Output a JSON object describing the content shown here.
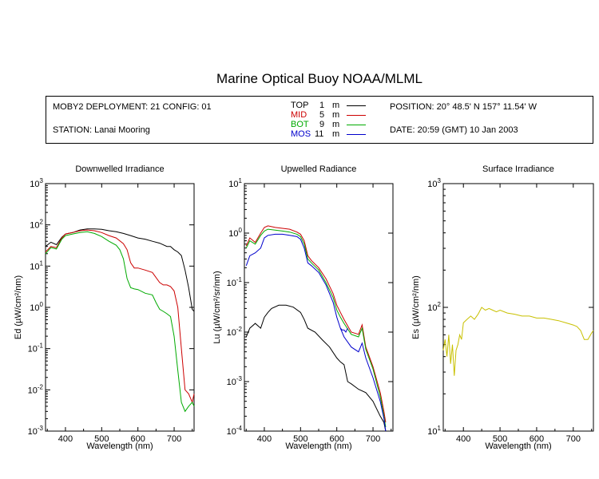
{
  "title": "Marine Optical Buoy NOAA/MLML",
  "info": {
    "deployment": "MOBY2 DEPLOYMENT: 21 CONFIG: 01",
    "station": "STATION: Lanai Mooring",
    "position": "POSITION: 20° 48.5' N   157° 11.54' W",
    "date": "DATE: 20:59 (GMT) 10 Jan 2003"
  },
  "legend": [
    {
      "name": "TOP",
      "depth": "1",
      "unit": "m",
      "color": "#000000"
    },
    {
      "name": "MID",
      "depth": "5",
      "unit": "m",
      "color": "#cc0000"
    },
    {
      "name": "BOT",
      "depth": "9",
      "unit": "m",
      "color": "#00aa00"
    },
    {
      "name": "MOS",
      "depth": "11",
      "unit": "m",
      "color": "#0000cc"
    }
  ],
  "chart_data": [
    {
      "type": "line",
      "title": "Downwelled Irradiance",
      "xlabel": "Wavelength (nm)",
      "ylabel": "Ed (µW/cm²/nm)",
      "xlim": [
        345,
        755
      ],
      "ylim": [
        0.001,
        1000
      ],
      "yscale": "log",
      "xticks": [
        400,
        500,
        600,
        700
      ],
      "yticks": [
        "10^3",
        "10^2",
        "10^1",
        "10^0",
        "10^-1",
        "10^-2",
        "10^-3"
      ],
      "series": [
        {
          "name": "TOP",
          "color": "#000000",
          "x": [
            345,
            360,
            375,
            390,
            400,
            420,
            440,
            460,
            480,
            500,
            520,
            540,
            560,
            580,
            600,
            620,
            640,
            660,
            680,
            690,
            700,
            710,
            720,
            730,
            740,
            750,
            755
          ],
          "y": [
            30,
            38,
            33,
            50,
            60,
            65,
            75,
            80,
            80,
            78,
            72,
            68,
            62,
            55,
            48,
            45,
            40,
            36,
            30,
            30,
            25,
            22,
            18,
            8,
            3,
            0.9,
            0.8
          ]
        },
        {
          "name": "MID",
          "color": "#cc0000",
          "x": [
            345,
            360,
            375,
            390,
            400,
            420,
            440,
            460,
            480,
            500,
            520,
            540,
            560,
            570,
            580,
            590,
            600,
            620,
            640,
            660,
            670,
            680,
            690,
            700,
            710,
            720,
            730,
            740,
            750,
            755
          ],
          "y": [
            22,
            30,
            28,
            48,
            60,
            65,
            72,
            75,
            72,
            65,
            55,
            48,
            35,
            25,
            12,
            9,
            9,
            8,
            7,
            4,
            3.5,
            3.5,
            3.2,
            2.5,
            1,
            0.1,
            0.01,
            0.008,
            0.005,
            0.008
          ]
        },
        {
          "name": "BOT",
          "color": "#00aa00",
          "x": [
            345,
            360,
            375,
            390,
            400,
            420,
            440,
            460,
            480,
            500,
            520,
            540,
            550,
            560,
            570,
            580,
            590,
            600,
            620,
            640,
            650,
            660,
            670,
            680,
            690,
            700,
            710,
            720,
            730,
            740,
            750,
            755
          ],
          "y": [
            20,
            28,
            26,
            45,
            55,
            60,
            65,
            68,
            62,
            52,
            40,
            32,
            25,
            15,
            5,
            3,
            2.8,
            2.7,
            2.2,
            2,
            1.3,
            0.9,
            0.8,
            0.7,
            0.6,
            0.2,
            0.03,
            0.005,
            0.003,
            0.004,
            0.005,
            0.004
          ]
        }
      ]
    },
    {
      "type": "line",
      "title": "Upwelled Radiance",
      "xlabel": "Wavelength (nm)",
      "ylabel": "Lu (µW/cm²/sr/nm)",
      "xlim": [
        345,
        755
      ],
      "ylim": [
        0.0001,
        10
      ],
      "yscale": "log",
      "xticks": [
        400,
        500,
        600,
        700
      ],
      "yticks": [
        "10^1",
        "10^0",
        "10^-1",
        "10^-2",
        "10^-3",
        "10^-4"
      ],
      "series": [
        {
          "name": "TOP",
          "color": "#000000",
          "x": [
            350,
            360,
            375,
            390,
            400,
            410,
            420,
            440,
            460,
            480,
            500,
            510,
            520,
            540,
            560,
            580,
            600,
            610,
            620,
            630,
            640,
            660,
            680,
            700,
            720,
            730,
            735
          ],
          "y": [
            0.008,
            0.012,
            0.015,
            0.012,
            0.02,
            0.025,
            0.03,
            0.035,
            0.035,
            0.032,
            0.025,
            0.018,
            0.012,
            0.01,
            0.007,
            0.005,
            0.003,
            0.0025,
            0.0022,
            0.001,
            0.0009,
            0.0007,
            0.0006,
            0.0004,
            0.0002,
            0.00015,
            0.0001
          ]
        },
        {
          "name": "MID",
          "color": "#cc0000",
          "x": [
            350,
            360,
            375,
            390,
            400,
            410,
            430,
            450,
            470,
            490,
            500,
            510,
            520,
            530,
            550,
            570,
            590,
            600,
            610,
            620,
            640,
            660,
            670,
            680,
            700,
            720,
            730,
            735
          ],
          "y": [
            0.55,
            0.8,
            0.65,
            1.0,
            1.3,
            1.4,
            1.3,
            1.25,
            1.2,
            1.05,
            0.95,
            0.7,
            0.35,
            0.28,
            0.2,
            0.12,
            0.06,
            0.035,
            0.025,
            0.018,
            0.01,
            0.009,
            0.014,
            0.005,
            0.002,
            0.0006,
            0.00025,
            0.00015
          ]
        },
        {
          "name": "BOT",
          "color": "#00aa00",
          "x": [
            350,
            360,
            375,
            390,
            400,
            410,
            430,
            450,
            470,
            490,
            500,
            510,
            520,
            530,
            550,
            570,
            590,
            600,
            610,
            620,
            640,
            660,
            670,
            680,
            700,
            720,
            730,
            735
          ],
          "y": [
            0.5,
            0.7,
            0.6,
            0.9,
            1.1,
            1.2,
            1.15,
            1.1,
            1.05,
            0.95,
            0.85,
            0.6,
            0.3,
            0.25,
            0.18,
            0.1,
            0.05,
            0.028,
            0.02,
            0.015,
            0.009,
            0.008,
            0.012,
            0.0045,
            0.0018,
            0.0005,
            0.0002,
            0.00012
          ]
        },
        {
          "name": "MOS",
          "color": "#0000cc",
          "x": [
            350,
            360,
            375,
            390,
            400,
            410,
            430,
            450,
            470,
            490,
            500,
            510,
            520,
            530,
            550,
            570,
            590,
            600,
            610,
            620,
            640,
            660,
            670,
            680,
            700,
            720,
            730,
            735
          ],
          "y": [
            0.22,
            0.35,
            0.4,
            0.5,
            0.8,
            0.9,
            0.95,
            0.95,
            0.9,
            0.85,
            0.75,
            0.5,
            0.25,
            0.22,
            0.16,
            0.09,
            0.04,
            0.02,
            0.012,
            0.008,
            0.005,
            0.004,
            0.006,
            0.003,
            0.0012,
            0.0004,
            0.00018,
            0.0001
          ]
        },
        {
          "name": "",
          "color": "#0000cc",
          "x": [
            610,
            615,
            620,
            625,
            630
          ],
          "y": [
            0.012,
            0.011,
            0.011,
            0.01,
            0.012
          ]
        }
      ]
    },
    {
      "type": "line",
      "title": "Surface Irradiance",
      "xlabel": "Wavelength (nm)",
      "ylabel": "Es (µW/cm²/nm)",
      "xlim": [
        345,
        755
      ],
      "ylim": [
        10,
        1000
      ],
      "yscale": "log",
      "xticks": [
        400,
        500,
        600,
        700
      ],
      "yticks": [
        "10^3",
        "10^2",
        "10^1"
      ],
      "series": [
        {
          "name": "",
          "color": "#c8c000",
          "x": [
            345,
            350,
            355,
            360,
            365,
            370,
            375,
            380,
            385,
            390,
            395,
            400,
            410,
            420,
            430,
            440,
            450,
            460,
            470,
            480,
            490,
            500,
            520,
            540,
            560,
            580,
            600,
            620,
            640,
            660,
            680,
            700,
            710,
            720,
            730,
            740,
            750,
            755
          ],
          "y": [
            45,
            55,
            40,
            60,
            35,
            50,
            28,
            45,
            50,
            60,
            55,
            75,
            80,
            85,
            80,
            88,
            100,
            95,
            98,
            95,
            92,
            95,
            90,
            88,
            85,
            85,
            82,
            82,
            80,
            78,
            75,
            72,
            70,
            65,
            55,
            55,
            62,
            65
          ]
        }
      ]
    }
  ]
}
